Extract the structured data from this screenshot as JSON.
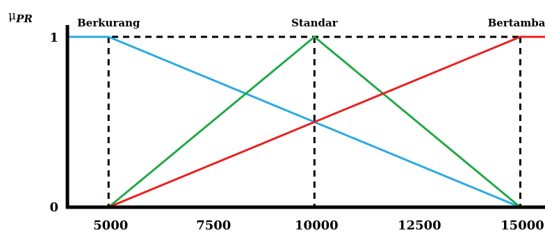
{
  "chart_data": {
    "type": "line",
    "ylabel": {
      "main": "μ",
      "sub": "PR"
    },
    "xlim": [
      4000,
      15600
    ],
    "ylim": [
      0,
      1
    ],
    "x_ticks": [
      5000,
      7500,
      10000,
      12500,
      15000
    ],
    "y_ticks": [
      0,
      1
    ],
    "dashed_guides_x": [
      5000,
      10000,
      15000
    ],
    "dashed_top": true,
    "series": [
      {
        "name": "Berkurang",
        "color": "#29abe2",
        "points": [
          [
            4000,
            1
          ],
          [
            5000,
            1
          ],
          [
            15000,
            0
          ]
        ]
      },
      {
        "name": "Standar",
        "color": "#22a845",
        "points": [
          [
            5000,
            0
          ],
          [
            10000,
            1
          ],
          [
            15000,
            0
          ]
        ]
      },
      {
        "name": "Bertambah",
        "color": "#e8201e",
        "points": [
          [
            5000,
            0
          ],
          [
            15000,
            1
          ],
          [
            15600,
            1
          ]
        ]
      }
    ],
    "set_labels": [
      {
        "text": "Berkurang",
        "x": 5000
      },
      {
        "text": "Standar",
        "x": 10000
      },
      {
        "text": "Bertambah",
        "x": 15000
      }
    ]
  }
}
